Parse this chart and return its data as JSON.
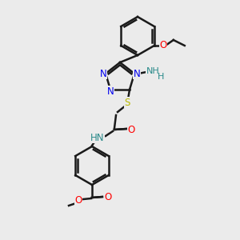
{
  "bg_color": "#ebebeb",
  "bond_color": "#1a1a1a",
  "bond_width": 1.8,
  "atom_colors": {
    "N": "#0000ee",
    "O": "#ff0000",
    "S": "#b8b800",
    "H": "#2a8a8a",
    "C": "#1a1a1a"
  },
  "font_size": 8.5,
  "double_sep": 2.5
}
